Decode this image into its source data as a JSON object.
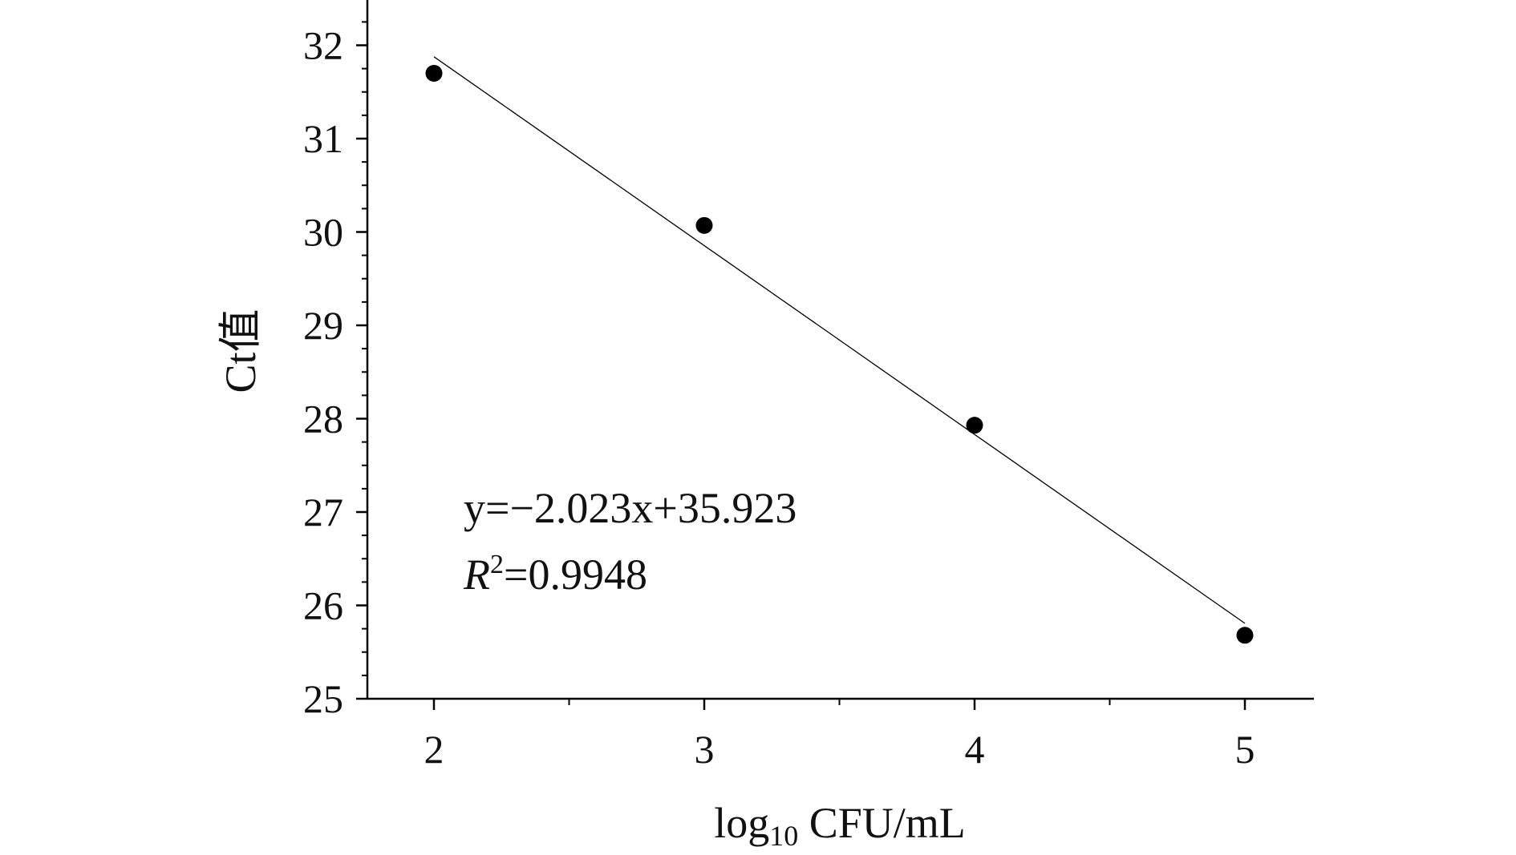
{
  "chart_data": {
    "type": "scatter",
    "title": "",
    "xlabel": {
      "base": "log",
      "subscript": "10",
      "rest": " CFU/mL"
    },
    "ylabel": "Ct值",
    "xlim": [
      1.75,
      5.25
    ],
    "ylim": [
      25,
      32.5
    ],
    "x_ticks": [
      2,
      3,
      4,
      5
    ],
    "y_ticks": [
      25,
      26,
      27,
      28,
      29,
      30,
      31,
      32
    ],
    "x_tick_labels": [
      "2",
      "3",
      "4",
      "5"
    ],
    "y_tick_labels": [
      "25",
      "26",
      "27",
      "28",
      "29",
      "30",
      "31",
      "32"
    ],
    "series": [
      {
        "x": [
          2,
          3,
          4,
          5
        ],
        "y": [
          31.7,
          30.07,
          27.93,
          25.68
        ],
        "color": "#000000",
        "marker": "circle"
      }
    ],
    "trendline": {
      "slope": -2.023,
      "intercept": 35.923,
      "x_range": [
        2.0,
        5.0
      ],
      "color": "#000000"
    },
    "annotations": {
      "equation": "y=−2.023x+35.923",
      "r2_symbol": "R",
      "r2_superscript": "2",
      "r2_value": "=0.9948"
    },
    "grid": false,
    "legend": "none"
  }
}
